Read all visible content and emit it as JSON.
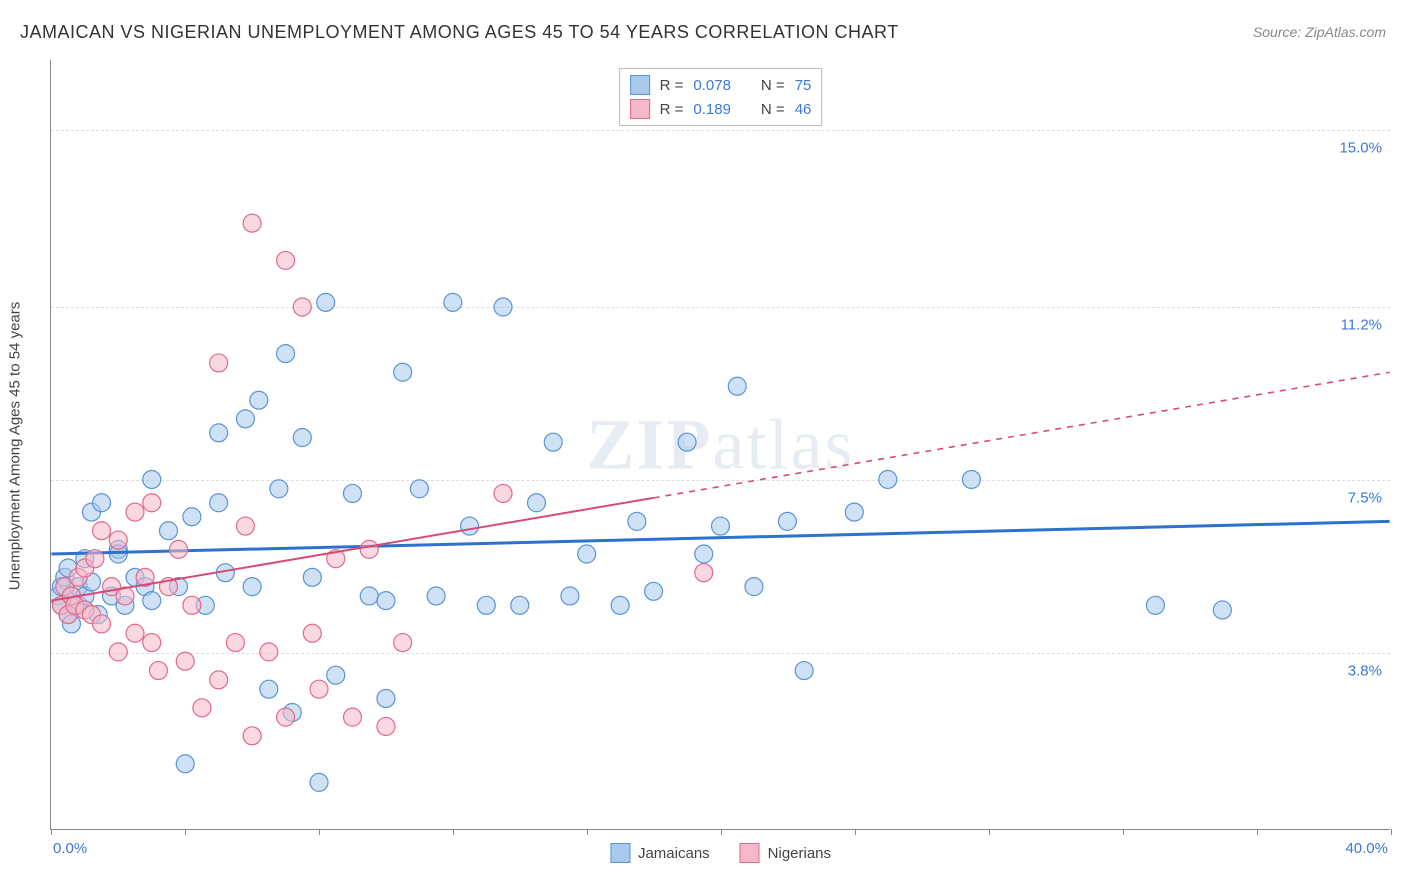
{
  "title": "JAMAICAN VS NIGERIAN UNEMPLOYMENT AMONG AGES 45 TO 54 YEARS CORRELATION CHART",
  "source": "Source: ZipAtlas.com",
  "watermark_a": "ZIP",
  "watermark_b": "atlas",
  "yaxis_title": "Unemployment Among Ages 45 to 54 years",
  "chart": {
    "type": "scatter",
    "xlim": [
      0,
      40
    ],
    "ylim": [
      0,
      16.5
    ],
    "x_ticks": [
      0,
      4,
      8,
      12,
      16,
      20,
      24,
      28,
      32,
      36,
      40
    ],
    "x_label_min": "0.0%",
    "x_label_max": "40.0%",
    "y_gridlines": [
      3.8,
      7.5,
      11.2,
      15.0
    ],
    "y_labels": [
      "3.8%",
      "7.5%",
      "11.2%",
      "15.0%"
    ],
    "background_color": "#ffffff",
    "grid_color": "#dddddd",
    "marker_radius": 9,
    "marker_opacity": 0.55,
    "series": [
      {
        "name": "Jamaicans",
        "fill": "#a8c8ec",
        "stroke": "#5a93d6",
        "R": "0.078",
        "N": "75",
        "trend": {
          "x1": 0,
          "y1": 5.9,
          "x2": 40,
          "y2": 6.6,
          "solid_until_x": 40,
          "color": "#2d72cc",
          "width": 3
        },
        "points": [
          [
            0.2,
            5.0
          ],
          [
            0.3,
            4.8
          ],
          [
            0.3,
            5.2
          ],
          [
            0.4,
            5.4
          ],
          [
            0.5,
            4.6
          ],
          [
            0.5,
            5.6
          ],
          [
            0.6,
            5.0
          ],
          [
            0.6,
            4.4
          ],
          [
            0.8,
            5.2
          ],
          [
            0.8,
            4.8
          ],
          [
            1.0,
            5.8
          ],
          [
            1.0,
            5.0
          ],
          [
            1.2,
            6.8
          ],
          [
            1.2,
            5.3
          ],
          [
            1.4,
            4.6
          ],
          [
            1.5,
            7.0
          ],
          [
            1.8,
            5.0
          ],
          [
            2.0,
            6.0
          ],
          [
            2.0,
            5.9
          ],
          [
            2.2,
            4.8
          ],
          [
            2.5,
            5.4
          ],
          [
            2.8,
            5.2
          ],
          [
            3.0,
            7.5
          ],
          [
            3.0,
            4.9
          ],
          [
            3.5,
            6.4
          ],
          [
            3.8,
            5.2
          ],
          [
            4.0,
            1.4
          ],
          [
            4.2,
            6.7
          ],
          [
            4.6,
            4.8
          ],
          [
            5.0,
            8.5
          ],
          [
            5.0,
            7.0
          ],
          [
            5.2,
            5.5
          ],
          [
            5.8,
            8.8
          ],
          [
            6.0,
            5.2
          ],
          [
            6.2,
            9.2
          ],
          [
            6.5,
            3.0
          ],
          [
            6.8,
            7.3
          ],
          [
            7.0,
            10.2
          ],
          [
            7.2,
            2.5
          ],
          [
            7.5,
            8.4
          ],
          [
            7.8,
            5.4
          ],
          [
            8.0,
            1.0
          ],
          [
            8.2,
            11.3
          ],
          [
            8.5,
            3.3
          ],
          [
            9.0,
            7.2
          ],
          [
            9.5,
            5.0
          ],
          [
            10.0,
            2.8
          ],
          [
            10.0,
            4.9
          ],
          [
            10.5,
            9.8
          ],
          [
            11.0,
            7.3
          ],
          [
            11.5,
            5.0
          ],
          [
            12.0,
            11.3
          ],
          [
            12.5,
            6.5
          ],
          [
            13.0,
            4.8
          ],
          [
            13.5,
            11.2
          ],
          [
            14.0,
            4.8
          ],
          [
            14.5,
            7.0
          ],
          [
            15.0,
            8.3
          ],
          [
            15.5,
            5.0
          ],
          [
            16.0,
            5.9
          ],
          [
            17.0,
            4.8
          ],
          [
            17.5,
            6.6
          ],
          [
            18.0,
            5.1
          ],
          [
            19.0,
            8.3
          ],
          [
            19.5,
            5.9
          ],
          [
            20.0,
            6.5
          ],
          [
            20.5,
            9.5
          ],
          [
            21.0,
            5.2
          ],
          [
            22.0,
            6.6
          ],
          [
            22.5,
            3.4
          ],
          [
            24.0,
            6.8
          ],
          [
            25.0,
            7.5
          ],
          [
            27.5,
            7.5
          ],
          [
            33.0,
            4.8
          ],
          [
            35.0,
            4.7
          ]
        ]
      },
      {
        "name": "Nigerians",
        "fill": "#f5b8c8",
        "stroke": "#e06a8a",
        "R": "0.189",
        "N": "46",
        "trend": {
          "x1": 0,
          "y1": 4.9,
          "x2": 40,
          "y2": 9.8,
          "solid_until_x": 18,
          "color": "#d84a76",
          "width": 2
        },
        "points": [
          [
            0.3,
            4.8
          ],
          [
            0.4,
            5.2
          ],
          [
            0.5,
            4.6
          ],
          [
            0.6,
            5.0
          ],
          [
            0.7,
            4.8
          ],
          [
            0.8,
            5.4
          ],
          [
            1.0,
            4.7
          ],
          [
            1.0,
            5.6
          ],
          [
            1.2,
            4.6
          ],
          [
            1.3,
            5.8
          ],
          [
            1.5,
            6.4
          ],
          [
            1.5,
            4.4
          ],
          [
            1.8,
            5.2
          ],
          [
            2.0,
            3.8
          ],
          [
            2.0,
            6.2
          ],
          [
            2.2,
            5.0
          ],
          [
            2.5,
            4.2
          ],
          [
            2.5,
            6.8
          ],
          [
            2.8,
            5.4
          ],
          [
            3.0,
            4.0
          ],
          [
            3.0,
            7.0
          ],
          [
            3.2,
            3.4
          ],
          [
            3.5,
            5.2
          ],
          [
            3.8,
            6.0
          ],
          [
            4.0,
            3.6
          ],
          [
            4.2,
            4.8
          ],
          [
            4.5,
            2.6
          ],
          [
            5.0,
            3.2
          ],
          [
            5.0,
            10.0
          ],
          [
            5.5,
            4.0
          ],
          [
            5.8,
            6.5
          ],
          [
            6.0,
            2.0
          ],
          [
            6.0,
            13.0
          ],
          [
            6.5,
            3.8
          ],
          [
            7.0,
            12.2
          ],
          [
            7.0,
            2.4
          ],
          [
            7.5,
            11.2
          ],
          [
            7.8,
            4.2
          ],
          [
            8.0,
            3.0
          ],
          [
            8.5,
            5.8
          ],
          [
            9.0,
            2.4
          ],
          [
            9.5,
            6.0
          ],
          [
            10.0,
            2.2
          ],
          [
            10.5,
            4.0
          ],
          [
            13.5,
            7.2
          ],
          [
            19.5,
            5.5
          ]
        ]
      }
    ]
  },
  "stat_legend": {
    "r_label": "R =",
    "n_label": "N ="
  },
  "bottom_legend": {
    "items": [
      "Jamaicans",
      "Nigerians"
    ]
  }
}
